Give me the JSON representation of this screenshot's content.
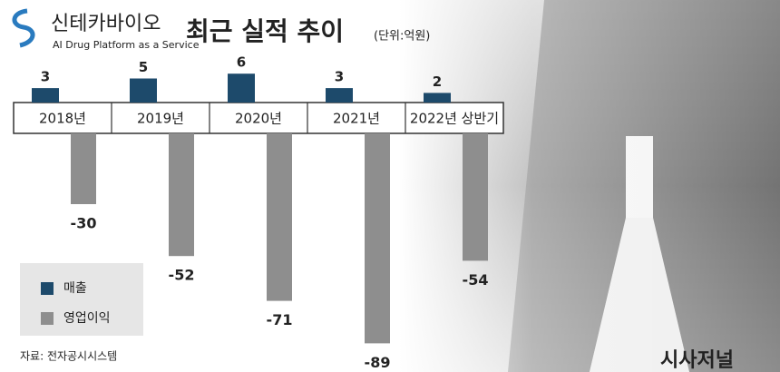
{
  "logo": {
    "name": "신테카바이오",
    "tagline": "AI Drug Platform as a Service"
  },
  "chart_data": {
    "type": "bar",
    "title": "최근 실적 추이",
    "subtitle": "(단위:억원)",
    "categories": [
      "2018년",
      "2019년",
      "2020년",
      "2021년",
      "2022년 상반기"
    ],
    "series": [
      {
        "name": "매출",
        "color": "#1d4a6b",
        "values": [
          3,
          5,
          6,
          3,
          2
        ]
      },
      {
        "name": "영업이익",
        "color": "#8e8e8e",
        "values": [
          -30,
          -52,
          -71,
          -89,
          -54
        ]
      }
    ],
    "legend": "bottom-left",
    "source": "자료: 전자공시시스템"
  },
  "watermark": "시사저널"
}
